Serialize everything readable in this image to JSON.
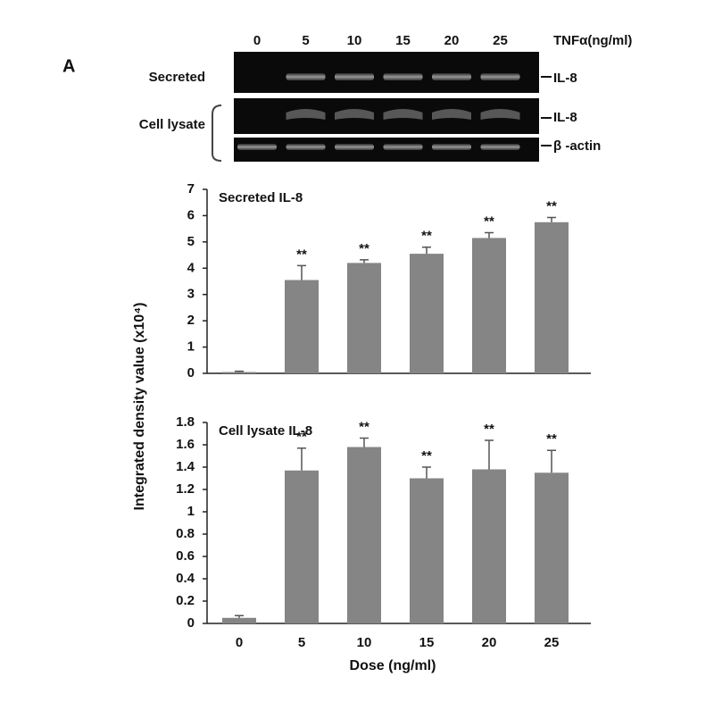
{
  "panel_label": "A",
  "blot": {
    "lanes": [
      "0",
      "5",
      "10",
      "15",
      "20",
      "25"
    ],
    "lanes_title": "TNFα(ng/ml)",
    "rows": [
      "Secreted",
      "Cell lysate"
    ],
    "bands": [
      "IL-8",
      "IL-8",
      "β -actin"
    ]
  },
  "y_label": "Integrated density value (x10⁴)",
  "x_label": "Dose (ng/ml)",
  "chart_data": [
    {
      "type": "bar",
      "title": "Secreted IL-8",
      "categories": [
        null,
        null,
        null,
        null,
        null,
        null
      ],
      "values": [
        0.05,
        3.55,
        4.2,
        4.55,
        5.15,
        5.75
      ],
      "errors": [
        0.03,
        0.55,
        0.12,
        0.25,
        0.2,
        0.18
      ],
      "annotations": [
        null,
        "**",
        "**",
        "**",
        "**",
        "**"
      ],
      "color": "#858585",
      "ylim": [
        0,
        7
      ],
      "yticks": [
        0,
        1,
        2,
        3,
        4,
        5,
        6,
        7
      ]
    },
    {
      "type": "bar",
      "title": "Cell lysate IL-8",
      "categories": [
        "0",
        "5",
        "10",
        "15",
        "20",
        "25"
      ],
      "values": [
        0.05,
        1.37,
        1.58,
        1.3,
        1.38,
        1.35
      ],
      "errors": [
        0.02,
        0.2,
        0.08,
        0.1,
        0.26,
        0.2
      ],
      "annotations": [
        null,
        "**",
        "**",
        "**",
        "**",
        "**"
      ],
      "color": "#858585",
      "ylim": [
        0,
        1.8
      ],
      "yticks": [
        0,
        0.2,
        0.4,
        0.6,
        0.8,
        1,
        1.2,
        1.4,
        1.6,
        1.8
      ]
    }
  ]
}
